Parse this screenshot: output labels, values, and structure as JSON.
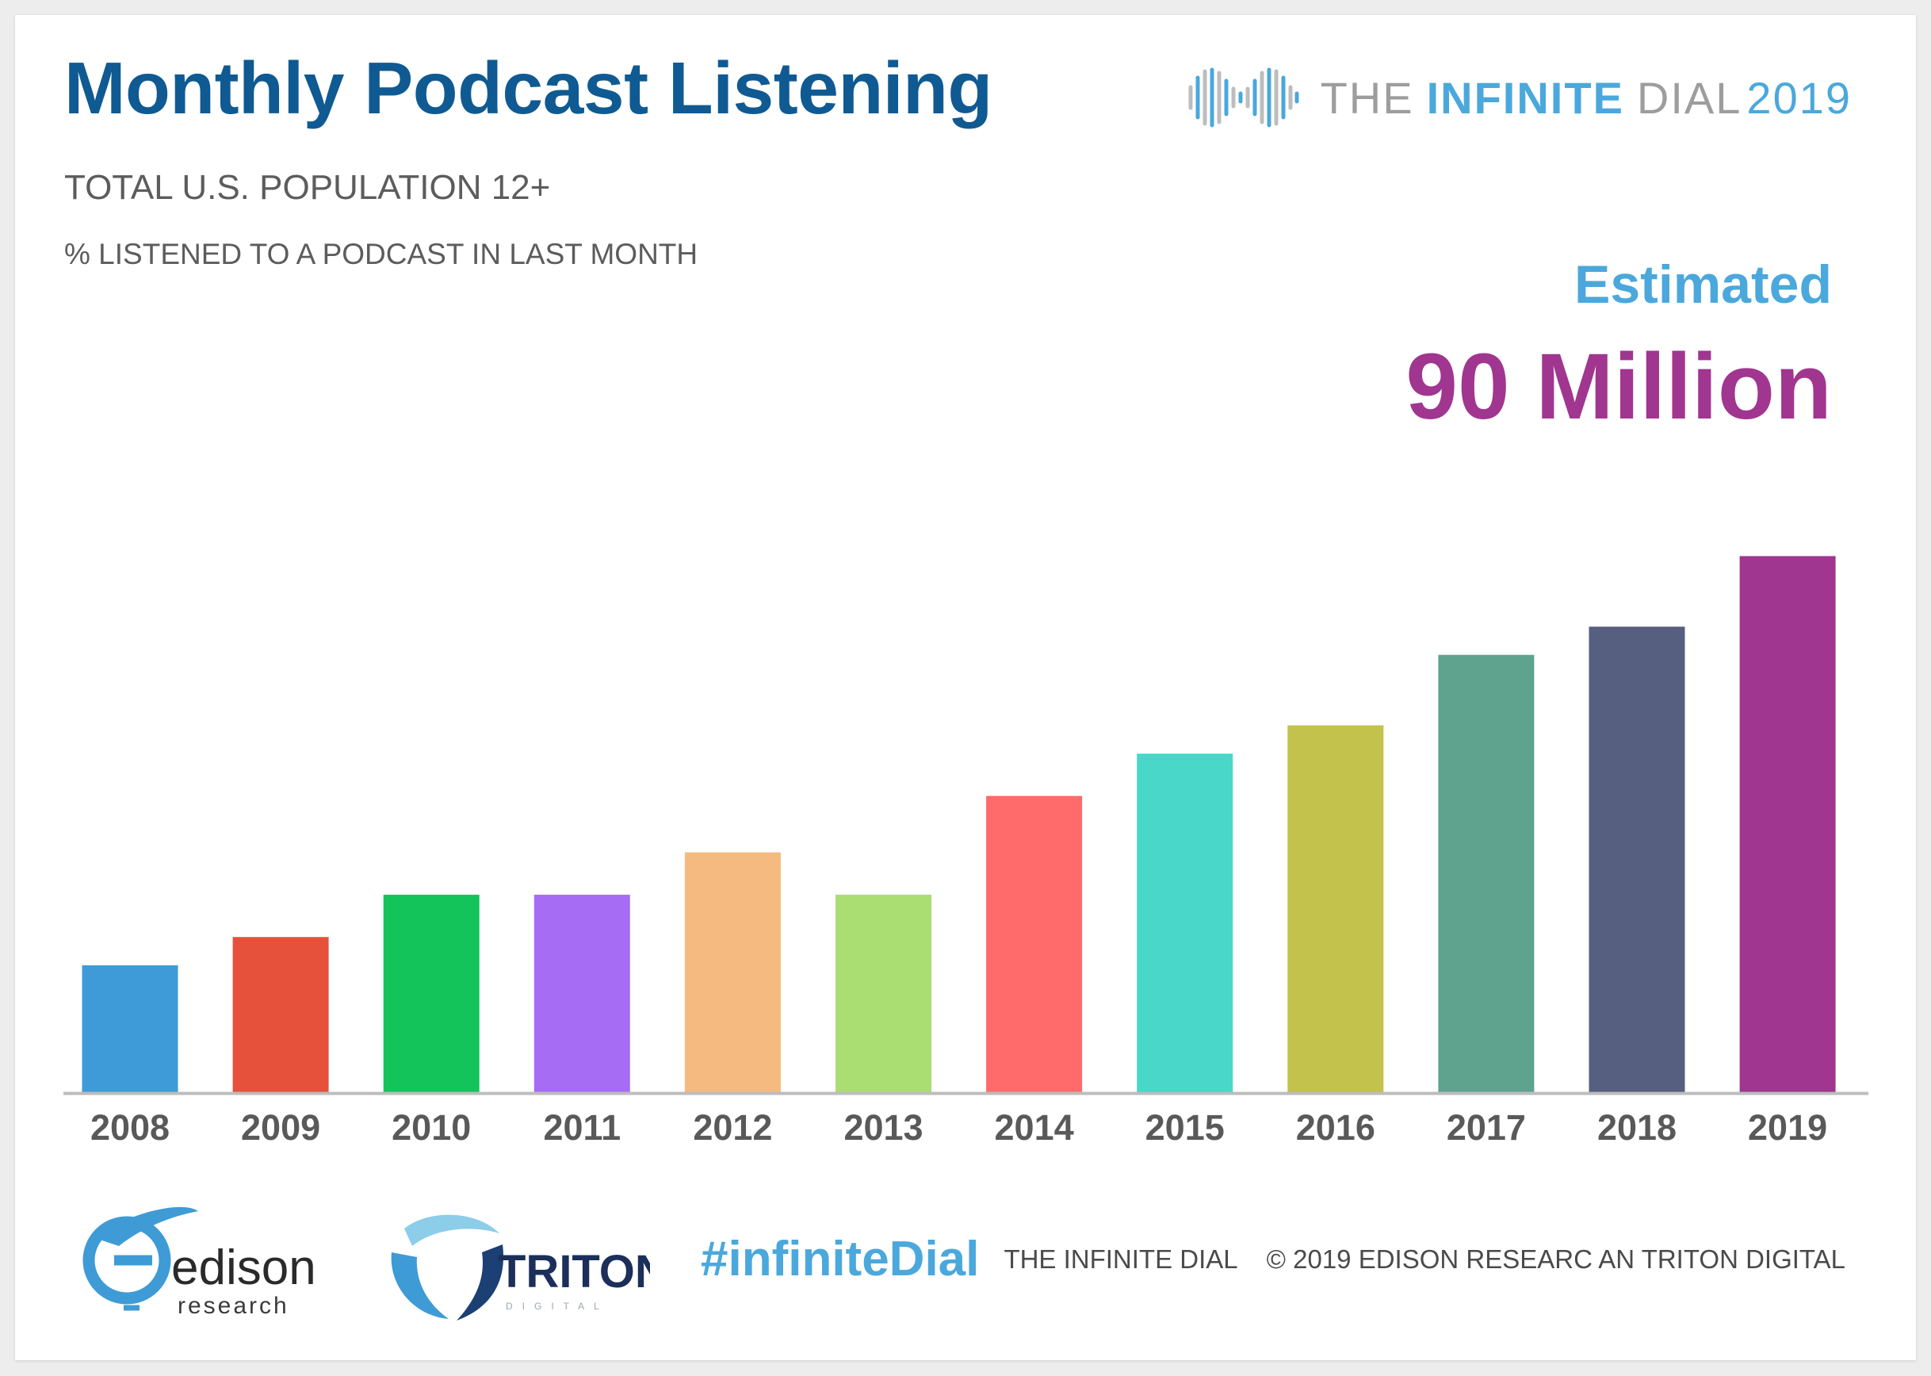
{
  "title": "Monthly Podcast Listening",
  "subtitle": "TOTAL U.S. POPULATION 12+",
  "brand": {
    "word1": "THE",
    "word2": "INFINITE",
    "word3": "DIAL",
    "year": "2019",
    "logo_icon": "infinity-wave-icon"
  },
  "estimate": {
    "label": "Estimated",
    "value": "90 Million"
  },
  "footer": {
    "hashtag": "#infiniteDial",
    "series_name": "THE INFINITE DIAL",
    "copyright": "© 2019 EDISON RESEARC AN TRITON DIGITAL",
    "edison_logo": {
      "word": "edison",
      "sub": "research"
    },
    "triton_logo": {
      "word": "TRITON",
      "sub": "DIGITAL"
    }
  },
  "chart_data": {
    "type": "bar",
    "title": "Monthly Podcast Listening",
    "ylabel": "% LISTENED TO A PODCAST IN LAST MONTH",
    "categories": [
      "2008",
      "2009",
      "2010",
      "2011",
      "2012",
      "2013",
      "2014",
      "2015",
      "2016",
      "2017",
      "2018",
      "2019"
    ],
    "values": [
      9,
      11,
      14,
      14,
      17,
      14,
      21,
      24,
      26,
      31,
      33,
      38
    ],
    "colors": [
      "#3f9bd7",
      "#e5513a",
      "#13c45a",
      "#a66cf4",
      "#f4ba80",
      "#aadd72",
      "#ff6a6a",
      "#48d7c8",
      "#c3c24c",
      "#5fa38f",
      "#575f80",
      "#a0368f"
    ],
    "ylim": [
      0,
      40
    ],
    "grid": false,
    "legend": "none"
  }
}
